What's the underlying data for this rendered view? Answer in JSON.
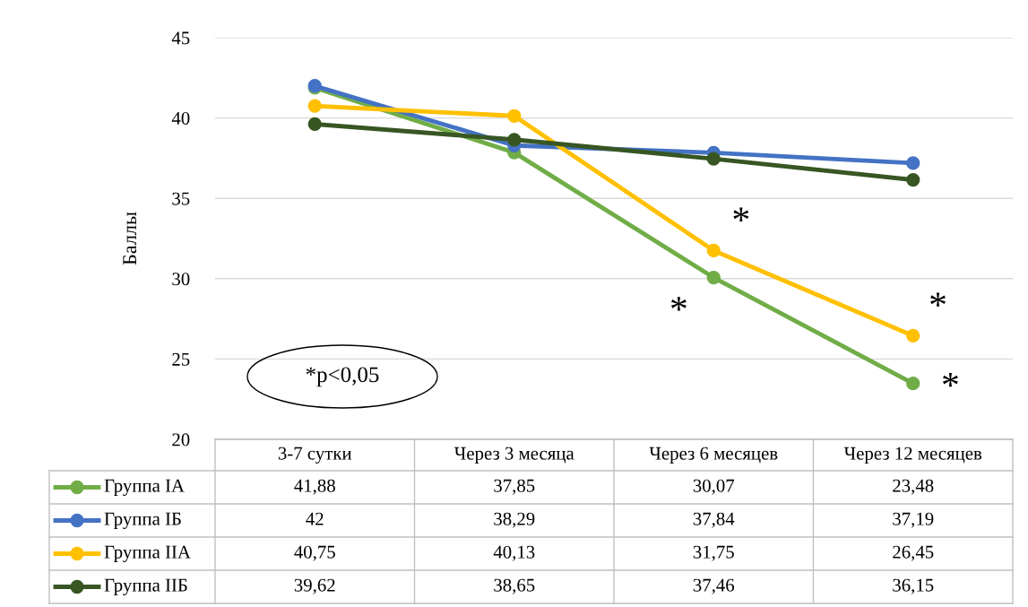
{
  "chart_data": {
    "type": "line",
    "ylabel": "Баллы",
    "categories": [
      "3-7 сутки",
      "Через 3 месяца",
      "Через 6 месяцев",
      "Через 12 месяцев"
    ],
    "series": [
      {
        "name": "Группа IA",
        "color": "#70ad47",
        "values": [
          41.88,
          37.85,
          30.07,
          23.48
        ]
      },
      {
        "name": "Группа IБ",
        "color": "#4472c4",
        "values": [
          42,
          38.29,
          37.84,
          37.19
        ]
      },
      {
        "name": "Группа IIA",
        "color": "#ffc000",
        "values": [
          40.75,
          40.13,
          31.75,
          26.45
        ]
      },
      {
        "name": "Группа IIБ",
        "color": "#375623",
        "values": [
          39.62,
          38.65,
          37.46,
          36.15
        ]
      }
    ],
    "value_labels": [
      [
        "41,88",
        "37,85",
        "30,07",
        "23,48"
      ],
      [
        "42",
        "38,29",
        "37,84",
        "37,19"
      ],
      [
        "40,75",
        "40,13",
        "31,75",
        "26,45"
      ],
      [
        "39,62",
        "38,65",
        "37,46",
        "36,15"
      ]
    ],
    "ylim": [
      20,
      45
    ],
    "yticks": [
      20,
      25,
      30,
      35,
      40,
      45
    ],
    "grid": "y",
    "legend": "bottom",
    "marker": "circle",
    "line_style": "solid",
    "annotations": [
      {
        "text": "*",
        "x": "Через 6 месяцев",
        "y": 31.75
      },
      {
        "text": "*",
        "x": "Через 6 месяцев",
        "y": 30.07
      },
      {
        "text": "*",
        "x": "Через 12 месяцев",
        "y": 26.45
      },
      {
        "text": "*",
        "x": "Через 12 месяцев",
        "y": 23.48
      },
      "*p<0,05"
    ]
  }
}
